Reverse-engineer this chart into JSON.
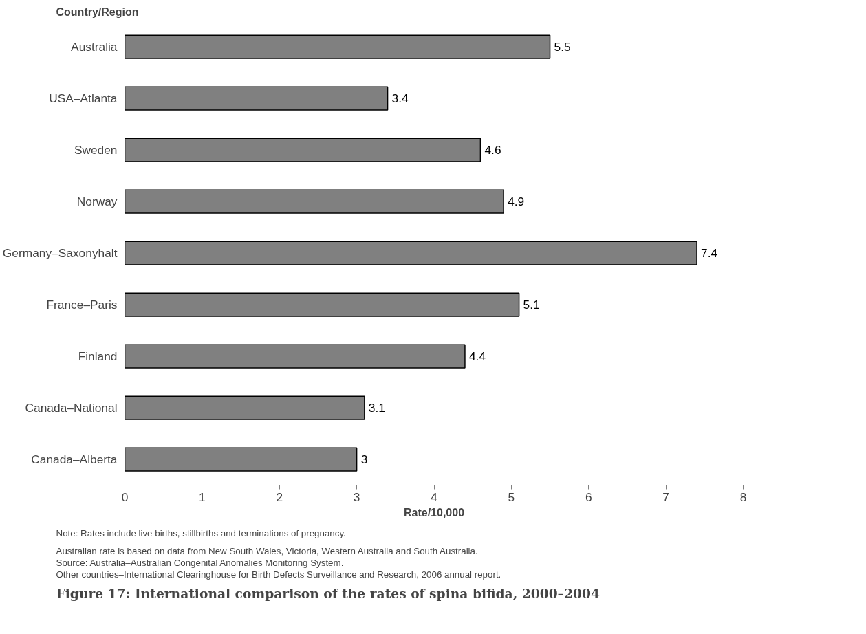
{
  "chart_data": {
    "type": "bar",
    "orientation": "horizontal",
    "title": "Figure 17: International comparison of the rates of spina bifida, 2000–2004",
    "ylabel": "Country/Region",
    "xlabel": "Rate/10,000",
    "categories": [
      "Australia",
      "USA–Atlanta",
      "Sweden",
      "Norway",
      "Germany–Saxonyhalt",
      "France–Paris",
      "Finland",
      "Canada–National",
      "Canada–Alberta"
    ],
    "values": [
      5.5,
      3.4,
      4.6,
      4.9,
      7.4,
      5.1,
      4.4,
      3.1,
      3
    ],
    "color": "#808080",
    "xlim": [
      0,
      8
    ],
    "xticks": [
      0,
      1,
      2,
      3,
      4,
      5,
      6,
      7,
      8
    ],
    "data_labels": true,
    "grid": false,
    "annotations": [
      "Note: Rates include live births, stillbirths and terminations of pregnancy.",
      "Australian rate is based on data from New South Wales, Victoria, Western Australia and South Australia.",
      "Source:  Australia–Australian Congenital Anomalies Monitoring System.",
      "Other countries–International Clearinghouse for Birth Defects Surveillance and Research, 2006 annual report."
    ]
  }
}
